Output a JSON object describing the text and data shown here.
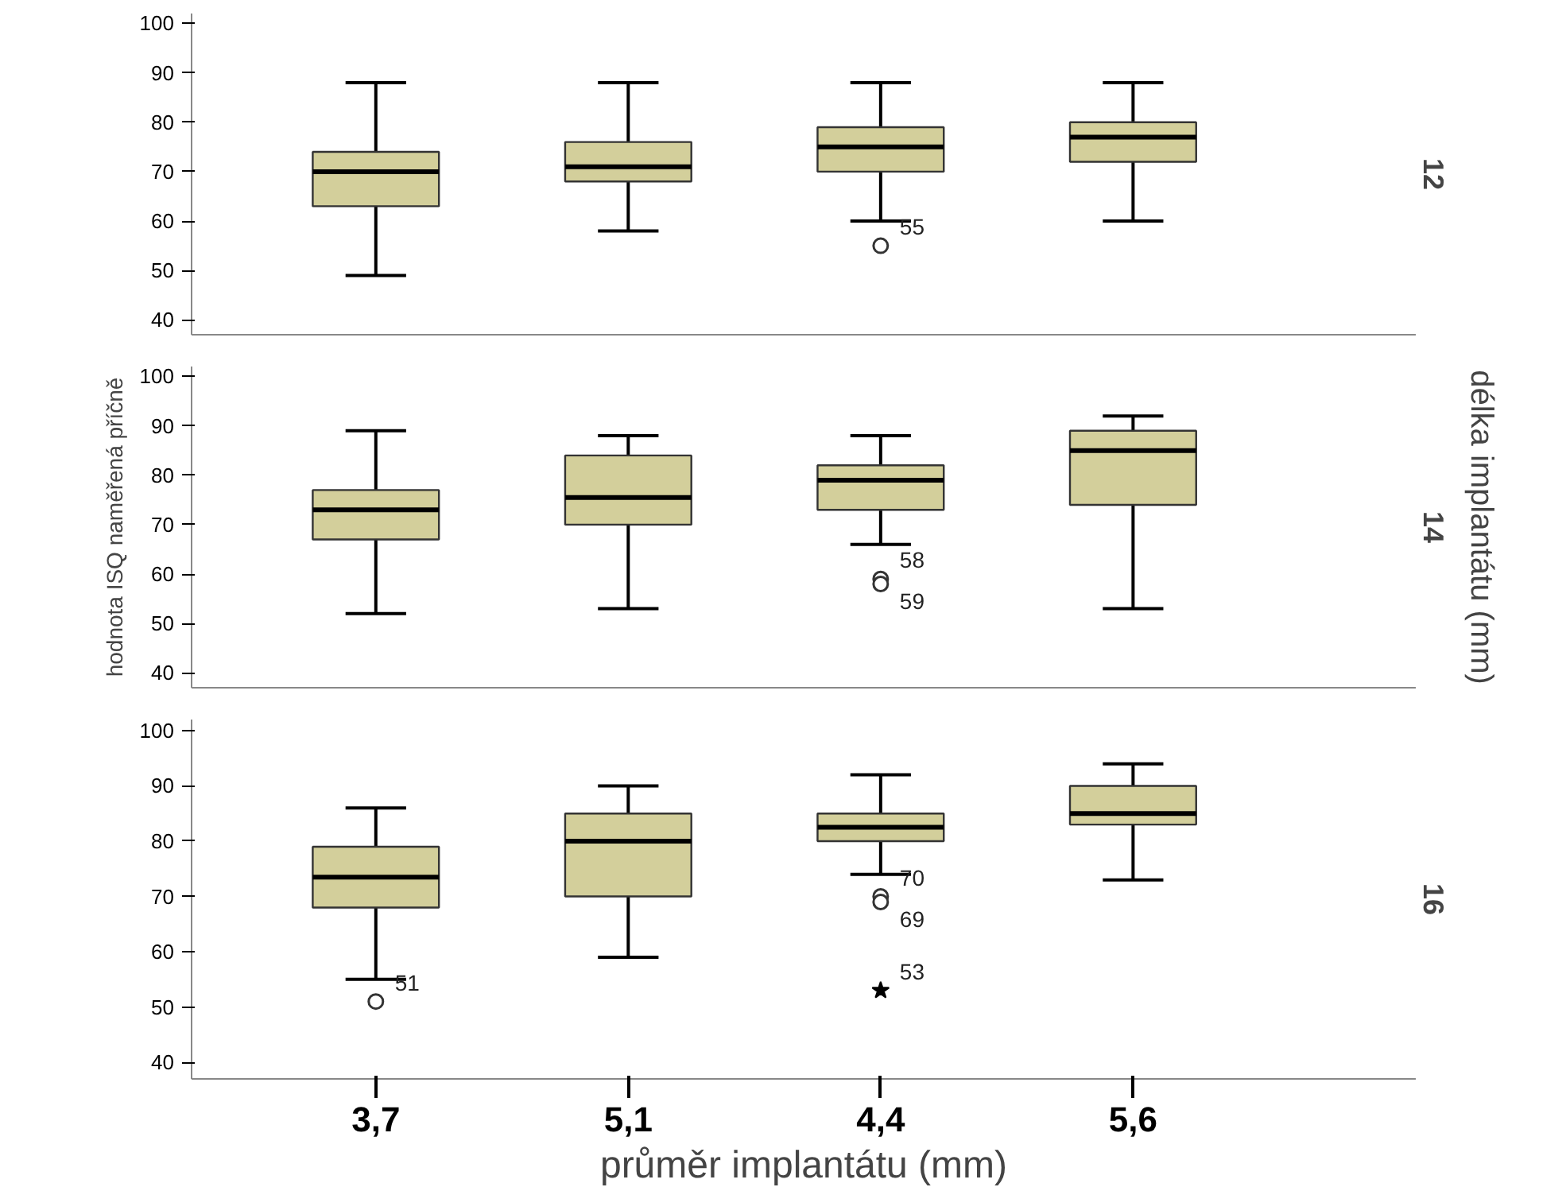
{
  "chart_data": [
    {
      "type": "box",
      "title": "12",
      "categories": [
        "3,7",
        "5,1",
        "4,4",
        "5,6"
      ],
      "ylim": [
        37,
        102
      ],
      "yticks": [
        40,
        50,
        60,
        70,
        80,
        90,
        100
      ],
      "tick_labels": "y",
      "series": [
        {
          "color": "#d3cf9b",
          "boxes": [
            {
              "low": 49,
              "q1": 63,
              "median": 70,
              "q3": 74,
              "high": 88
            },
            {
              "low": 58,
              "q1": 68,
              "median": 71,
              "q3": 76,
              "high": 88
            },
            {
              "low": 60,
              "q1": 70,
              "median": 75,
              "q3": 79,
              "high": 88,
              "outliers": [
                55
              ]
            },
            {
              "low": 60,
              "q1": 72,
              "median": 77,
              "q3": 80,
              "high": 88
            }
          ]
        }
      ],
      "annotations": [
        "55"
      ]
    },
    {
      "type": "box",
      "title": "14",
      "ylabel": "hodnota ISQ naměřená příčně",
      "y2label": "délka implantátu (mm)",
      "categories": [
        "3,7",
        "5,1",
        "4,4",
        "5,6"
      ],
      "ylim": [
        37,
        102
      ],
      "yticks": [
        40,
        50,
        60,
        70,
        80,
        90,
        100
      ],
      "tick_labels": "y",
      "series": [
        {
          "color": "#d3cf9b",
          "boxes": [
            {
              "low": 52,
              "q1": 67,
              "median": 73,
              "q3": 77,
              "high": 89
            },
            {
              "low": 53,
              "q1": 70,
              "median": 75.5,
              "q3": 84,
              "high": 88
            },
            {
              "low": 66,
              "q1": 73,
              "median": 79,
              "q3": 82,
              "high": 88,
              "outliers": [
                59,
                58
              ]
            },
            {
              "low": 53,
              "q1": 74,
              "median": 85,
              "q3": 89,
              "high": 92
            }
          ]
        }
      ],
      "annotations": [
        "58",
        "59"
      ]
    },
    {
      "type": "box",
      "title": "16",
      "xlabel": "průměr implantátu (mm)",
      "categories": [
        "3,7",
        "5,1",
        "4,4",
        "5,6"
      ],
      "ylim": [
        37,
        102
      ],
      "yticks": [
        40,
        50,
        60,
        70,
        80,
        90,
        100
      ],
      "series": [
        {
          "color": "#d3cf9b",
          "boxes": [
            {
              "low": 55,
              "q1": 68,
              "median": 73.5,
              "q3": 79,
              "high": 86,
              "outliers": [
                51
              ]
            },
            {
              "low": 59,
              "q1": 70,
              "median": 80,
              "q3": 85,
              "high": 90
            },
            {
              "low": 74,
              "q1": 80,
              "median": 82.5,
              "q3": 85,
              "high": 92,
              "outliers": [
                70,
                69
              ]
            },
            {
              "low": 73,
              "q1": 83,
              "median": 85,
              "q3": 90,
              "high": 94
            }
          ]
        },
        {
          "type": "scatter",
          "marker": "star",
          "color": "#000000",
          "x": [
            "4,4"
          ],
          "values": [
            53
          ]
        }
      ],
      "annotations": [
        "51",
        "70",
        "69",
        "53"
      ]
    }
  ]
}
